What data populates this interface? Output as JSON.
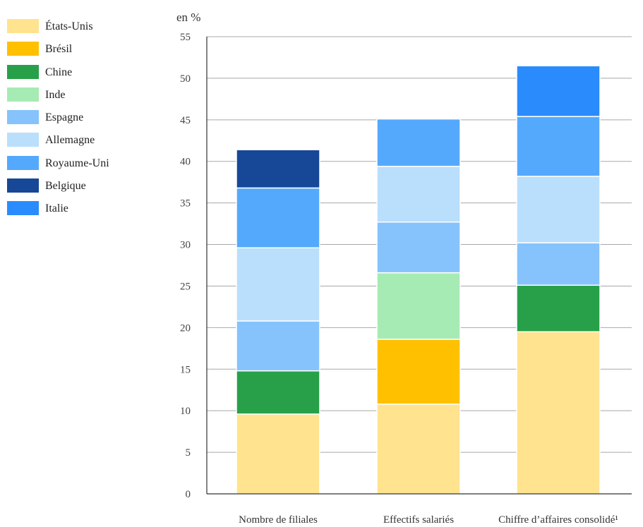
{
  "chart_data": {
    "type": "bar",
    "stacked": true,
    "unit_label": "en %",
    "categories": [
      "Nombre de filiales",
      "Effectifs salariés",
      "Chiffre d’affaires consolidé¹"
    ],
    "ylim": [
      0,
      55
    ],
    "yticks": [
      0,
      5,
      10,
      15,
      20,
      25,
      30,
      35,
      40,
      45,
      50,
      55
    ],
    "grid": true,
    "legend_position": "left",
    "series": [
      {
        "name": "États-Unis",
        "color": "#FFE38F",
        "values": [
          9.6,
          10.8,
          19.5
        ]
      },
      {
        "name": "Brésil",
        "color": "#FFC000",
        "values": [
          0,
          7.8,
          0
        ]
      },
      {
        "name": "Chine",
        "color": "#28A04A",
        "values": [
          5.2,
          0,
          5.6
        ]
      },
      {
        "name": "Inde",
        "color": "#A6EBB4",
        "values": [
          0,
          8.0,
          0
        ]
      },
      {
        "name": "Espagne",
        "color": "#86C3FC",
        "values": [
          6.0,
          6.1,
          5.1
        ]
      },
      {
        "name": "Allemagne",
        "color": "#B9DFFC",
        "values": [
          8.8,
          6.7,
          8.0
        ]
      },
      {
        "name": "Royaume-Uni",
        "color": "#55A9FC",
        "values": [
          7.2,
          5.7,
          7.2
        ]
      },
      {
        "name": "Belgique",
        "color": "#174797",
        "values": [
          4.6,
          0,
          0
        ]
      },
      {
        "name": "Italie",
        "color": "#2A8CFC",
        "values": [
          0,
          0,
          6.1
        ]
      }
    ]
  }
}
